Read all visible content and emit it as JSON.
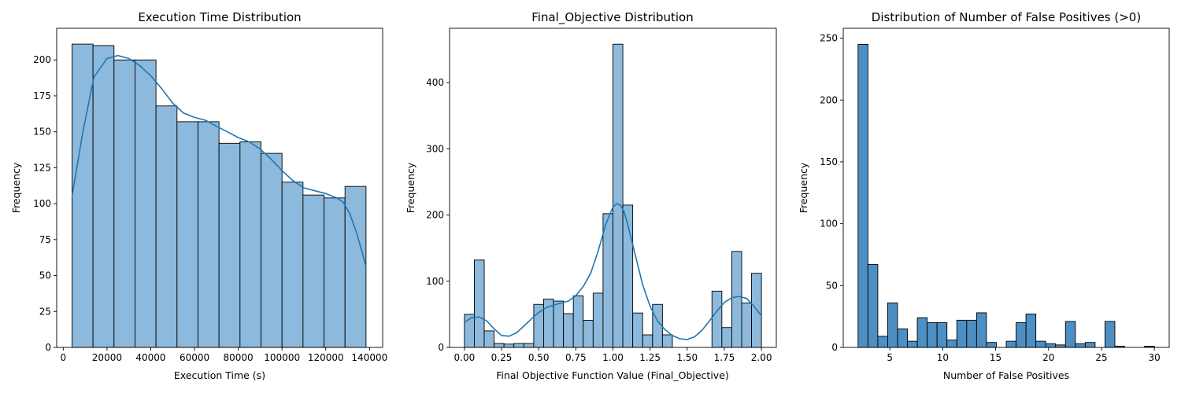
{
  "chart_data": [
    {
      "type": "bar",
      "title": "Execution Time Distribution",
      "xlabel": "Execution Time (s)",
      "ylabel": "Frequency",
      "xlim": [
        -3000,
        146000
      ],
      "ylim": [
        0,
        222
      ],
      "xticks": [
        0,
        20000,
        40000,
        60000,
        80000,
        100000,
        120000,
        140000
      ],
      "xtick_labels": [
        "0",
        "20000",
        "40000",
        "60000",
        "80000",
        "100000",
        "120000",
        "140000"
      ],
      "yticks": [
        0,
        25,
        50,
        75,
        100,
        125,
        150,
        175,
        200
      ],
      "ytick_labels": [
        "0",
        "25",
        "50",
        "75",
        "100",
        "125",
        "150",
        "175",
        "200"
      ],
      "bin_edges": [
        4000,
        13600,
        23200,
        32800,
        42400,
        52000,
        61600,
        71200,
        80800,
        90400,
        100000,
        109600,
        119200,
        128800,
        138400
      ],
      "values": [
        211,
        210,
        200,
        200,
        168,
        157,
        157,
        142,
        143,
        135,
        115,
        106,
        104,
        112
      ],
      "kde": {
        "x": [
          4000,
          9000,
          14000,
          20000,
          25000,
          30000,
          35000,
          40000,
          45000,
          50000,
          55000,
          60000,
          65000,
          70000,
          75000,
          80000,
          85000,
          90000,
          95000,
          100000,
          105000,
          110000,
          115000,
          120000,
          125000,
          128000,
          131000,
          134000,
          136500,
          138400
        ],
        "y": [
          105,
          150,
          188,
          201,
          203,
          201,
          196,
          189,
          180,
          170,
          163,
          160,
          158,
          154,
          150,
          146,
          143,
          138,
          131,
          123,
          116,
          111,
          109,
          107,
          104,
          101,
          93,
          80,
          67,
          56
        ]
      },
      "bar_color": "#8cb9dc",
      "line_color": "#1f77b4"
    },
    {
      "type": "bar",
      "title": "Final_Objective Distribution",
      "xlabel": "Final Objective Function Value (Final_Objective)",
      "ylabel": "Frequency",
      "xlim": [
        -0.1,
        2.1
      ],
      "ylim": [
        0,
        482
      ],
      "xticks": [
        0,
        0.25,
        0.5,
        0.75,
        1.0,
        1.25,
        1.5,
        1.75,
        2.0
      ],
      "xtick_labels": [
        "0.00",
        "0.25",
        "0.50",
        "0.75",
        "1.00",
        "1.25",
        "1.50",
        "1.75",
        "2.00"
      ],
      "yticks": [
        0,
        100,
        200,
        300,
        400
      ],
      "ytick_labels": [
        "0",
        "100",
        "200",
        "300",
        "400"
      ],
      "bin_edges": [
        0.0,
        0.0667,
        0.1333,
        0.2,
        0.2667,
        0.3333,
        0.4,
        0.4667,
        0.5333,
        0.6,
        0.6667,
        0.7333,
        0.8,
        0.8667,
        0.9333,
        1.0,
        1.0667,
        1.1333,
        1.2,
        1.2667,
        1.3333,
        1.4,
        1.4667,
        1.5333,
        1.6,
        1.6667,
        1.7333,
        1.8,
        1.8667,
        1.9333,
        2.0
      ],
      "values": [
        50,
        132,
        25,
        6,
        5,
        6,
        6,
        65,
        73,
        70,
        51,
        78,
        41,
        82,
        202,
        458,
        215,
        52,
        19,
        65,
        19,
        0,
        0,
        0,
        0,
        85,
        30,
        145,
        67,
        112
      ],
      "kde": {
        "x": [
          0.0,
          0.05,
          0.1,
          0.15,
          0.2,
          0.25,
          0.3,
          0.35,
          0.4,
          0.45,
          0.5,
          0.55,
          0.6,
          0.65,
          0.7,
          0.75,
          0.8,
          0.85,
          0.9,
          0.95,
          1.0,
          1.025,
          1.05,
          1.075,
          1.1,
          1.15,
          1.2,
          1.25,
          1.3,
          1.35,
          1.4,
          1.45,
          1.5,
          1.55,
          1.6,
          1.65,
          1.7,
          1.75,
          1.8,
          1.85,
          1.9,
          1.95,
          2.0
        ],
        "y": [
          38,
          45,
          46,
          40,
          28,
          18,
          17,
          22,
          32,
          43,
          53,
          60,
          64,
          67,
          70,
          78,
          92,
          112,
          145,
          185,
          212,
          217,
          215,
          205,
          185,
          140,
          95,
          62,
          40,
          27,
          18,
          13,
          12,
          16,
          26,
          40,
          55,
          68,
          75,
          77,
          74,
          62,
          48
        ]
      },
      "bar_color": "#8cb9dc",
      "line_color": "#1f77b4"
    },
    {
      "type": "bar",
      "title": "Distribution of Number of False Positives (>0)",
      "xlabel": "Number of False Positives",
      "ylabel": "Frequency",
      "xlim": [
        0.6,
        31.4
      ],
      "ylim": [
        0,
        258
      ],
      "xticks": [
        5,
        10,
        15,
        20,
        25,
        30
      ],
      "xtick_labels": [
        "5",
        "10",
        "15",
        "20",
        "25",
        "30"
      ],
      "yticks": [
        0,
        50,
        100,
        150,
        200,
        250
      ],
      "ytick_labels": [
        "0",
        "50",
        "100",
        "150",
        "200",
        "250"
      ],
      "bin_edges": [
        2.0,
        2.9333,
        3.8667,
        4.8,
        5.7333,
        6.6667,
        7.6,
        8.5333,
        9.4667,
        10.4,
        11.3333,
        12.2667,
        13.2,
        14.1333,
        15.0667,
        16.0,
        16.9333,
        17.8667,
        18.8,
        19.7333,
        20.6667,
        21.6,
        22.5333,
        23.4667,
        24.4,
        25.3333,
        26.2667,
        27.2,
        28.1333,
        29.0667,
        30.0
      ],
      "values": [
        245,
        67,
        9,
        36,
        15,
        5,
        24,
        20,
        20,
        6,
        22,
        22,
        28,
        4,
        0,
        5,
        20,
        27,
        5,
        3,
        2,
        21,
        3,
        4,
        0,
        21,
        1,
        0,
        0,
        1
      ],
      "bar_color": "#4d8fc2"
    }
  ]
}
